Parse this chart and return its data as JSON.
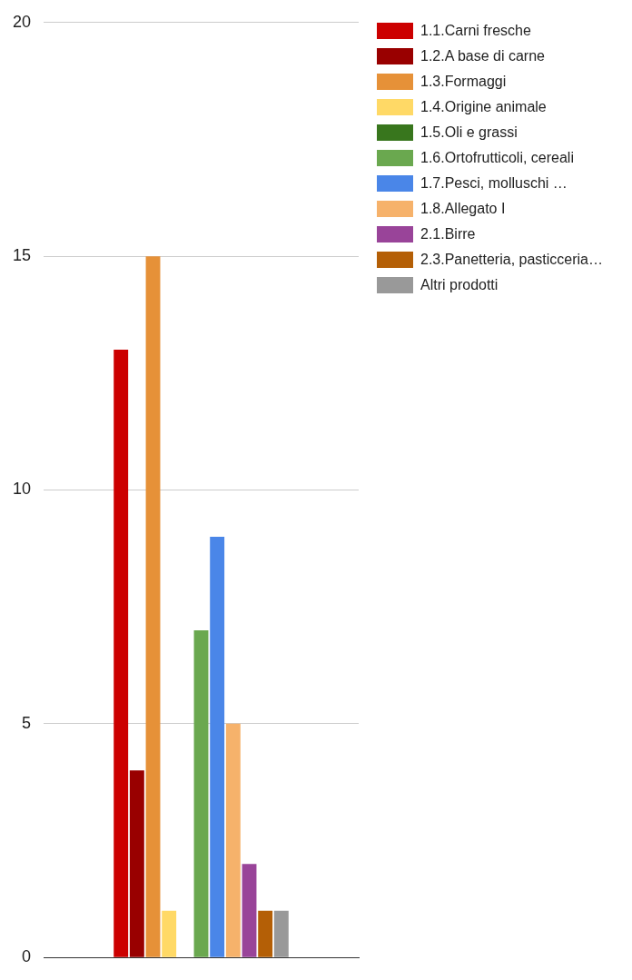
{
  "chart_data": {
    "type": "bar",
    "categories": [
      null
    ],
    "series": [
      {
        "name": "1.1.Carni fresche",
        "color": "#cc0000",
        "values": [
          13
        ]
      },
      {
        "name": "1.2.A base di carne",
        "color": "#990000",
        "values": [
          4
        ]
      },
      {
        "name": "1.3.Formaggi",
        "color": "#e69138",
        "values": [
          15
        ]
      },
      {
        "name": "1.4.Origine animale",
        "color": "#ffd966",
        "values": [
          1
        ]
      },
      {
        "name": "1.5.Oli e grassi",
        "color": "#38761d",
        "values": [
          0
        ]
      },
      {
        "name": "1.6.Ortofrutticoli, cereali",
        "color": "#6aa84f",
        "values": [
          7
        ]
      },
      {
        "name": "1.7.Pesci, molluschi …",
        "color": "#4a86e8",
        "values": [
          9
        ]
      },
      {
        "name": "1.8.Allegato I",
        "color": "#f6b26b",
        "values": [
          5
        ]
      },
      {
        "name": "2.1.Birre",
        "color": "#994499",
        "values": [
          2
        ]
      },
      {
        "name": "2.3.Panetteria, pasticceria…",
        "color": "#b45f06",
        "values": [
          1
        ]
      },
      {
        "name": "Altri prodotti",
        "color": "#999999",
        "values": [
          1
        ]
      }
    ],
    "ylim": [
      0,
      20
    ],
    "yticks": [
      0,
      5,
      10,
      15,
      20
    ],
    "grid": "y",
    "legend": "top right"
  }
}
